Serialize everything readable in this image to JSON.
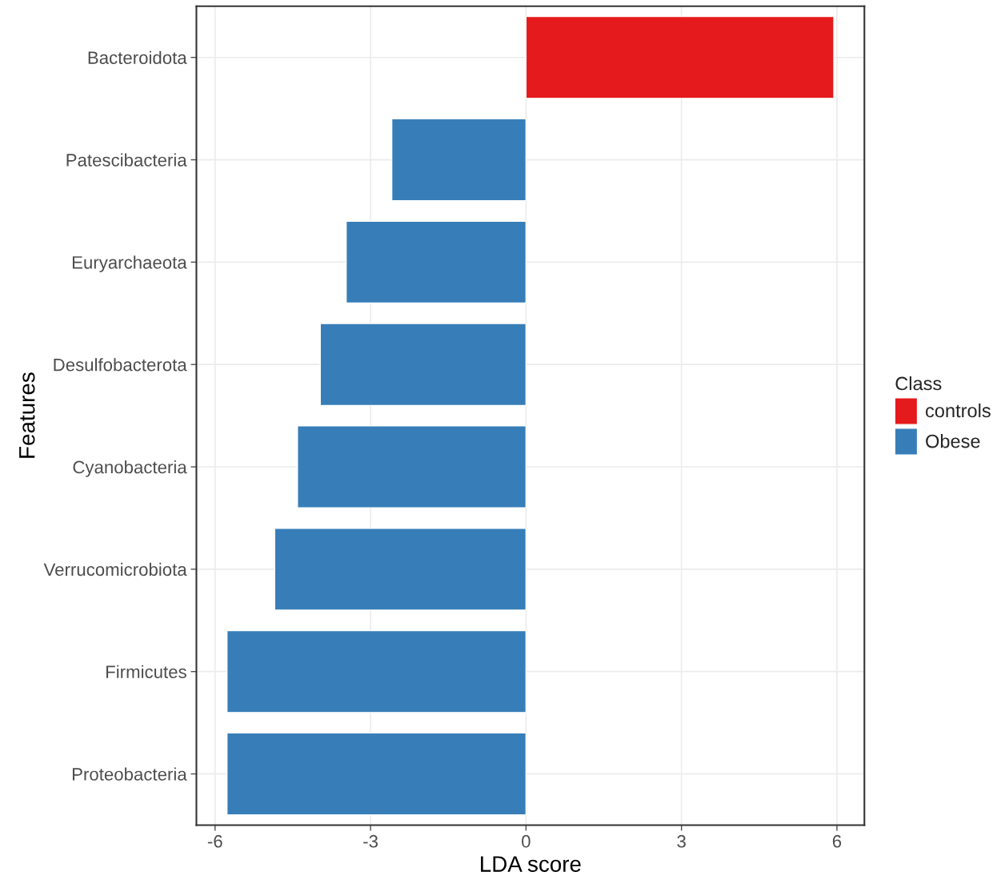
{
  "chart_data": {
    "type": "bar",
    "orientation": "horizontal",
    "xlabel": "LDA score",
    "ylabel": "Features",
    "legend_title": "Class",
    "legend": "right",
    "grid": true,
    "categories": [
      "Bacteroidota",
      "Patescibacteria",
      "Euryarchaeota",
      "Desulfobacterota",
      "Cyanobacteria",
      "Verrucomicrobiota",
      "Firmicutes",
      "Proteobacteria"
    ],
    "series": [
      {
        "name": "controls",
        "color": "#e41a1c",
        "values": [
          5.94,
          null,
          null,
          null,
          null,
          null,
          null,
          null
        ]
      },
      {
        "name": "Obese",
        "color": "#377eb8",
        "values": [
          null,
          -2.59,
          -3.47,
          -3.97,
          -4.41,
          -4.85,
          -5.77,
          -5.77
        ]
      }
    ],
    "xlim": [
      -6.36,
      6.53
    ],
    "xticks": [
      -6,
      -3,
      0,
      3,
      6
    ]
  }
}
